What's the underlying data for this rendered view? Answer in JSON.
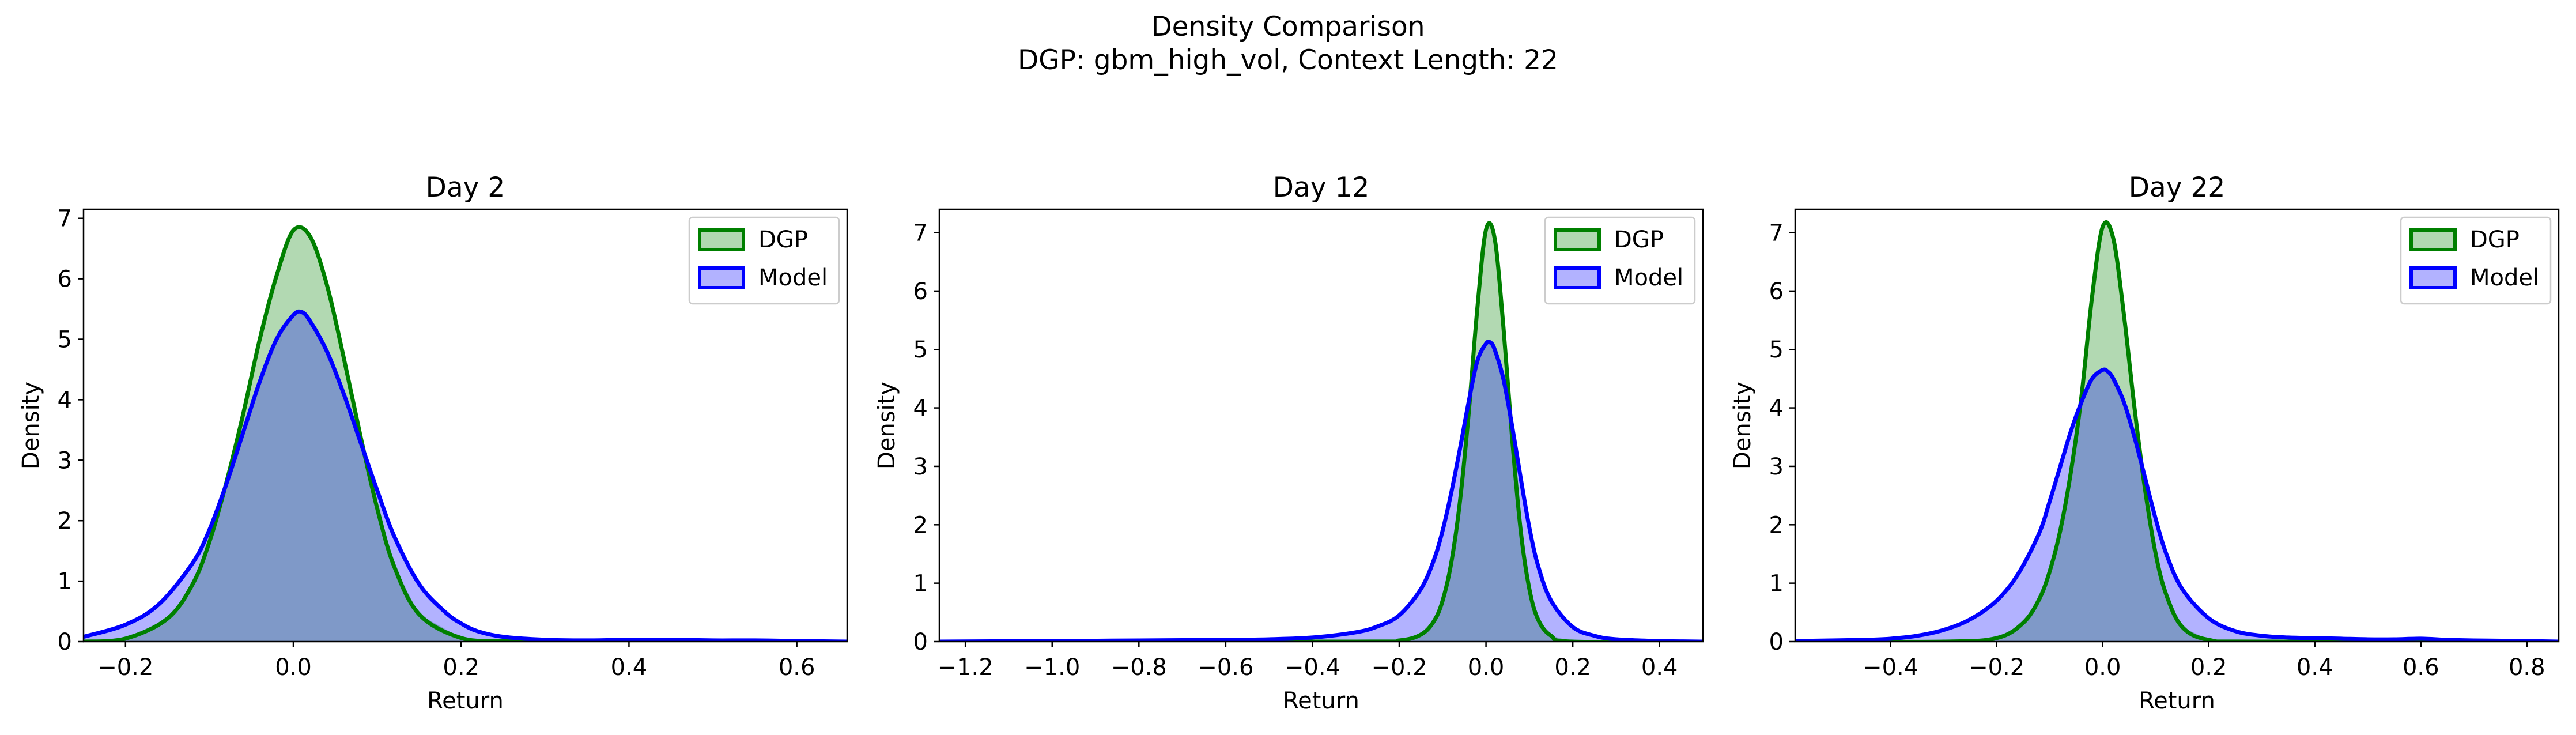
{
  "figure": {
    "title": "Density Comparison",
    "subtitle": "DGP: gbm_high_vol, Context Length: 22"
  },
  "colors": {
    "dgp_line": "#008000",
    "dgp_fill": "#b2d9b2",
    "model_line": "#0000ff",
    "model_fill": "#b2b2ff",
    "overlap_fill": "#7f99c8"
  },
  "chart_data": [
    {
      "type": "area",
      "title": "Day 2",
      "xlabel": "Return",
      "ylabel": "Density",
      "xlim": [
        -0.25,
        0.66
      ],
      "ylim": [
        0,
        7.15
      ],
      "xticks": [
        -0.2,
        0.0,
        0.2,
        0.4,
        0.6
      ],
      "xtick_labels": [
        "−0.2",
        "0.0",
        "0.2",
        "0.4",
        "0.6"
      ],
      "yticks": [
        0,
        1,
        2,
        3,
        4,
        5,
        6,
        7
      ],
      "ytick_labels": [
        "0",
        "1",
        "2",
        "3",
        "4",
        "5",
        "6",
        "7"
      ],
      "legend": {
        "position": "upper right",
        "entries": [
          "DGP",
          "Model"
        ]
      },
      "series": [
        {
          "name": "DGP",
          "x": [
            -0.25,
            -0.2,
            -0.15,
            -0.12,
            -0.1,
            -0.08,
            -0.06,
            -0.04,
            -0.02,
            0.0,
            0.02,
            0.04,
            0.06,
            0.08,
            0.1,
            0.12,
            0.15,
            0.2,
            0.25,
            0.3,
            0.4,
            0.5,
            0.66
          ],
          "y": [
            0.0,
            0.05,
            0.38,
            0.95,
            1.65,
            2.62,
            3.75,
            5.0,
            6.05,
            6.8,
            6.7,
            5.9,
            4.7,
            3.4,
            2.2,
            1.25,
            0.45,
            0.06,
            0.01,
            0.0,
            0.0,
            0.0,
            0.0
          ]
        },
        {
          "name": "Model",
          "x": [
            -0.25,
            -0.2,
            -0.16,
            -0.12,
            -0.1,
            -0.08,
            -0.06,
            -0.04,
            -0.02,
            0.0,
            0.01,
            0.02,
            0.04,
            0.06,
            0.08,
            0.1,
            0.12,
            0.15,
            0.18,
            0.2,
            0.22,
            0.25,
            0.3,
            0.35,
            0.4,
            0.45,
            0.5,
            0.55,
            0.6,
            0.66
          ],
          "y": [
            0.08,
            0.28,
            0.62,
            1.3,
            1.85,
            2.6,
            3.45,
            4.3,
            5.0,
            5.4,
            5.45,
            5.3,
            4.8,
            4.1,
            3.3,
            2.5,
            1.75,
            0.95,
            0.5,
            0.3,
            0.17,
            0.08,
            0.03,
            0.02,
            0.03,
            0.03,
            0.02,
            0.02,
            0.01,
            0.0
          ]
        }
      ]
    },
    {
      "type": "area",
      "title": "Day 12",
      "xlabel": "Return",
      "ylabel": "Density",
      "xlim": [
        -1.26,
        0.5
      ],
      "ylim": [
        0,
        7.4
      ],
      "xticks": [
        -1.2,
        -1.0,
        -0.8,
        -0.6,
        -0.4,
        -0.2,
        0.0,
        0.2,
        0.4
      ],
      "xtick_labels": [
        "−1.2",
        "−1.0",
        "−0.8",
        "−0.6",
        "−0.4",
        "−0.2",
        "0.0",
        "0.2",
        "0.4"
      ],
      "yticks": [
        0,
        1,
        2,
        3,
        4,
        5,
        6,
        7
      ],
      "ytick_labels": [
        "0",
        "1",
        "2",
        "3",
        "4",
        "5",
        "6",
        "7"
      ],
      "legend": {
        "position": "upper right",
        "entries": [
          "DGP",
          "Model"
        ]
      },
      "series": [
        {
          "name": "DGP",
          "x": [
            -1.26,
            -0.3,
            -0.2,
            -0.15,
            -0.12,
            -0.1,
            -0.08,
            -0.06,
            -0.04,
            -0.02,
            0.0,
            0.02,
            0.04,
            0.06,
            0.08,
            0.1,
            0.12,
            0.15,
            0.2,
            0.5
          ],
          "y": [
            0.0,
            0.0,
            0.02,
            0.12,
            0.35,
            0.7,
            1.35,
            2.4,
            3.9,
            5.7,
            7.05,
            6.9,
            5.4,
            3.5,
            1.9,
            0.9,
            0.38,
            0.1,
            0.0,
            0.0
          ]
        },
        {
          "name": "Model",
          "x": [
            -1.26,
            -1.0,
            -0.8,
            -0.6,
            -0.5,
            -0.4,
            -0.3,
            -0.25,
            -0.2,
            -0.15,
            -0.12,
            -0.1,
            -0.08,
            -0.06,
            -0.04,
            -0.02,
            0.0,
            0.01,
            0.02,
            0.04,
            0.06,
            0.08,
            0.1,
            0.12,
            0.15,
            0.2,
            0.25,
            0.3,
            0.4,
            0.5
          ],
          "y": [
            0.0,
            0.01,
            0.02,
            0.03,
            0.04,
            0.07,
            0.16,
            0.26,
            0.45,
            0.9,
            1.4,
            1.9,
            2.55,
            3.3,
            4.1,
            4.8,
            5.1,
            5.12,
            5.0,
            4.5,
            3.7,
            2.8,
            1.95,
            1.3,
            0.7,
            0.25,
            0.1,
            0.04,
            0.01,
            0.0
          ]
        }
      ]
    },
    {
      "type": "area",
      "title": "Day 22",
      "xlabel": "Return",
      "ylabel": "Density",
      "xlim": [
        -0.58,
        0.86
      ],
      "ylim": [
        0,
        7.4
      ],
      "xticks": [
        -0.4,
        -0.2,
        0.0,
        0.2,
        0.4,
        0.6,
        0.8
      ],
      "xtick_labels": [
        "−0.4",
        "−0.2",
        "0.0",
        "0.2",
        "0.4",
        "0.6",
        "0.8"
      ],
      "yticks": [
        0,
        1,
        2,
        3,
        4,
        5,
        6,
        7
      ],
      "ytick_labels": [
        "0",
        "1",
        "2",
        "3",
        "4",
        "5",
        "6",
        "7"
      ],
      "legend": {
        "position": "upper right",
        "entries": [
          "DGP",
          "Model"
        ]
      },
      "series": [
        {
          "name": "DGP",
          "x": [
            -0.58,
            -0.3,
            -0.2,
            -0.15,
            -0.12,
            -0.1,
            -0.08,
            -0.06,
            -0.04,
            -0.02,
            0.0,
            0.02,
            0.04,
            0.06,
            0.08,
            0.1,
            0.12,
            0.15,
            0.2,
            0.3,
            0.86
          ],
          "y": [
            0.0,
            0.0,
            0.06,
            0.32,
            0.72,
            1.2,
            1.9,
            2.9,
            4.2,
            5.9,
            7.1,
            6.9,
            5.6,
            4.0,
            2.6,
            1.5,
            0.8,
            0.25,
            0.03,
            0.0,
            0.0
          ]
        },
        {
          "name": "Model",
          "x": [
            -0.58,
            -0.45,
            -0.4,
            -0.35,
            -0.3,
            -0.25,
            -0.2,
            -0.16,
            -0.12,
            -0.1,
            -0.08,
            -0.06,
            -0.04,
            -0.02,
            0.0,
            0.01,
            0.02,
            0.04,
            0.06,
            0.08,
            0.1,
            0.12,
            0.15,
            0.2,
            0.25,
            0.3,
            0.35,
            0.4,
            0.45,
            0.5,
            0.55,
            0.6,
            0.65,
            0.7,
            0.8,
            0.86
          ],
          "y": [
            0.01,
            0.03,
            0.05,
            0.1,
            0.2,
            0.38,
            0.7,
            1.15,
            1.85,
            2.4,
            3.0,
            3.6,
            4.1,
            4.5,
            4.65,
            4.62,
            4.5,
            4.1,
            3.5,
            2.8,
            2.1,
            1.5,
            0.9,
            0.4,
            0.18,
            0.1,
            0.07,
            0.06,
            0.05,
            0.04,
            0.04,
            0.05,
            0.03,
            0.02,
            0.01,
            0.0
          ]
        }
      ]
    }
  ]
}
